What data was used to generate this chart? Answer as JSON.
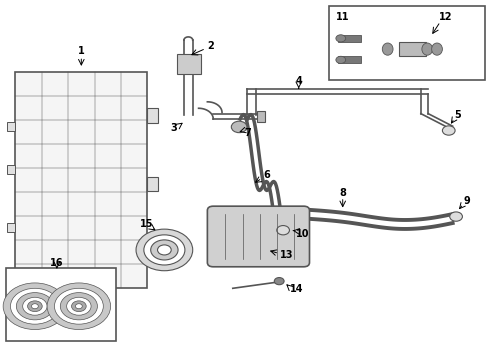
{
  "bg_color": "#ffffff",
  "line_color": "#555555",
  "text_color": "#000000",
  "fig_width": 4.9,
  "fig_height": 3.6,
  "dpi": 100
}
